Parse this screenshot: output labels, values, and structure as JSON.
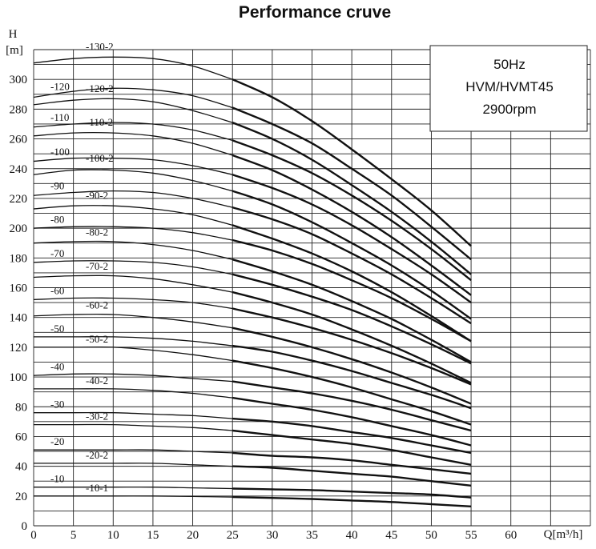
{
  "chart_data": {
    "type": "line",
    "title": "Performance cruve",
    "xlabel": "Q[m³/h]",
    "ylabel_top": "H",
    "ylabel_unit": "[m]",
    "xlim": [
      0,
      70
    ],
    "ylim": [
      0,
      320
    ],
    "xticks": [
      "0",
      "5",
      "10",
      "15",
      "20",
      "25",
      "30",
      "35",
      "40",
      "45",
      "50",
      "55",
      "60"
    ],
    "yticks": [
      "0",
      "20",
      "40",
      "60",
      "80",
      "100",
      "120",
      "140",
      "160",
      "180",
      "200",
      "220",
      "240",
      "260",
      "280",
      "300"
    ],
    "grid": true,
    "info_box": {
      "lines": [
        "50Hz",
        "HVM/HVMT45",
        "2900rpm"
      ],
      "placement": "top-right"
    },
    "x": [
      0,
      5,
      10,
      15,
      20,
      25,
      30,
      35,
      40,
      45,
      50,
      55
    ],
    "series": [
      {
        "name": "-130-2",
        "values": [
          311,
          314,
          315,
          314,
          309,
          300,
          288,
          272,
          253,
          233,
          212,
          188
        ]
      },
      {
        "name": "-120",
        "values": [
          288,
          292,
          294,
          293,
          289,
          281,
          270,
          257,
          240,
          222,
          201,
          179
        ]
      },
      {
        "name": "-120-2",
        "values": [
          283,
          286,
          287,
          285,
          279,
          271,
          260,
          246,
          229,
          211,
          191,
          169
        ]
      },
      {
        "name": "-110",
        "values": [
          268,
          270,
          271,
          270,
          266,
          259,
          249,
          237,
          222,
          205,
          186,
          165
        ]
      },
      {
        "name": "-110-2",
        "values": [
          262,
          264,
          264,
          262,
          257,
          249,
          239,
          226,
          211,
          194,
          175,
          155
        ]
      },
      {
        "name": "-100",
        "values": [
          245,
          247,
          247,
          246,
          242,
          236,
          227,
          216,
          202,
          186,
          169,
          150
        ]
      },
      {
        "name": "-100-2",
        "values": [
          236,
          239,
          239,
          237,
          232,
          225,
          216,
          204,
          190,
          175,
          158,
          139
        ]
      },
      {
        "name": "-90",
        "values": [
          222,
          224,
          225,
          224,
          220,
          214,
          206,
          196,
          183,
          169,
          153,
          136
        ]
      },
      {
        "name": "-90-2",
        "values": [
          213,
          215,
          215,
          213,
          209,
          202,
          193,
          183,
          171,
          157,
          141,
          124
        ]
      },
      {
        "name": "-80",
        "values": [
          200,
          201,
          201,
          200,
          197,
          192,
          185,
          176,
          165,
          153,
          139,
          124
        ]
      },
      {
        "name": "-80-2",
        "values": [
          190,
          191,
          191,
          189,
          185,
          179,
          171,
          162,
          151,
          139,
          125,
          110
        ]
      },
      {
        "name": "-70",
        "values": [
          177,
          178,
          178,
          177,
          174,
          169,
          162,
          154,
          145,
          134,
          122,
          109
        ]
      },
      {
        "name": "-70-2",
        "values": [
          167,
          168,
          168,
          166,
          162,
          157,
          150,
          142,
          132,
          121,
          109,
          96
        ]
      },
      {
        "name": "-60",
        "values": [
          152,
          153,
          153,
          152,
          150,
          146,
          140,
          133,
          125,
          116,
          106,
          95
        ]
      },
      {
        "name": "-60-2",
        "values": [
          141,
          142,
          142,
          140,
          137,
          133,
          127,
          120,
          112,
          103,
          93,
          82
        ]
      },
      {
        "name": "-50",
        "values": [
          127,
          127,
          127,
          126,
          124,
          121,
          117,
          111,
          104,
          96,
          88,
          79
        ]
      },
      {
        "name": "-50-2",
        "values": [
          120,
          120,
          120,
          118,
          115,
          111,
          106,
          100,
          93,
          85,
          77,
          68
        ]
      },
      {
        "name": "-40",
        "values": [
          101,
          102,
          102,
          101,
          99,
          97,
          93,
          89,
          84,
          78,
          71,
          64
        ]
      },
      {
        "name": "-40-2",
        "values": [
          92,
          92,
          92,
          91,
          89,
          86,
          82,
          78,
          73,
          67,
          61,
          54
        ]
      },
      {
        "name": "-30",
        "values": [
          76,
          76,
          76,
          75,
          74,
          72,
          70,
          67,
          63,
          59,
          54,
          49
        ]
      },
      {
        "name": "-30-2",
        "values": [
          68,
          68,
          68,
          67,
          66,
          64,
          61,
          58,
          55,
          51,
          46,
          41
        ]
      },
      {
        "name": "-20",
        "values": [
          51,
          51,
          51,
          51,
          50,
          49,
          47,
          46,
          44,
          41,
          38,
          35
        ]
      },
      {
        "name": "-20-2",
        "values": [
          42,
          42,
          42,
          42,
          41,
          40,
          39,
          37,
          35,
          33,
          30,
          27
        ]
      },
      {
        "name": "-10",
        "values": [
          26,
          26,
          26,
          26,
          25.5,
          25,
          24.5,
          24,
          23,
          22,
          21,
          19
        ]
      },
      {
        "name": "-10-1",
        "values": [
          20,
          20,
          20,
          20,
          19.7,
          19.3,
          18.7,
          18,
          17,
          16,
          14.5,
          13
        ]
      }
    ]
  }
}
